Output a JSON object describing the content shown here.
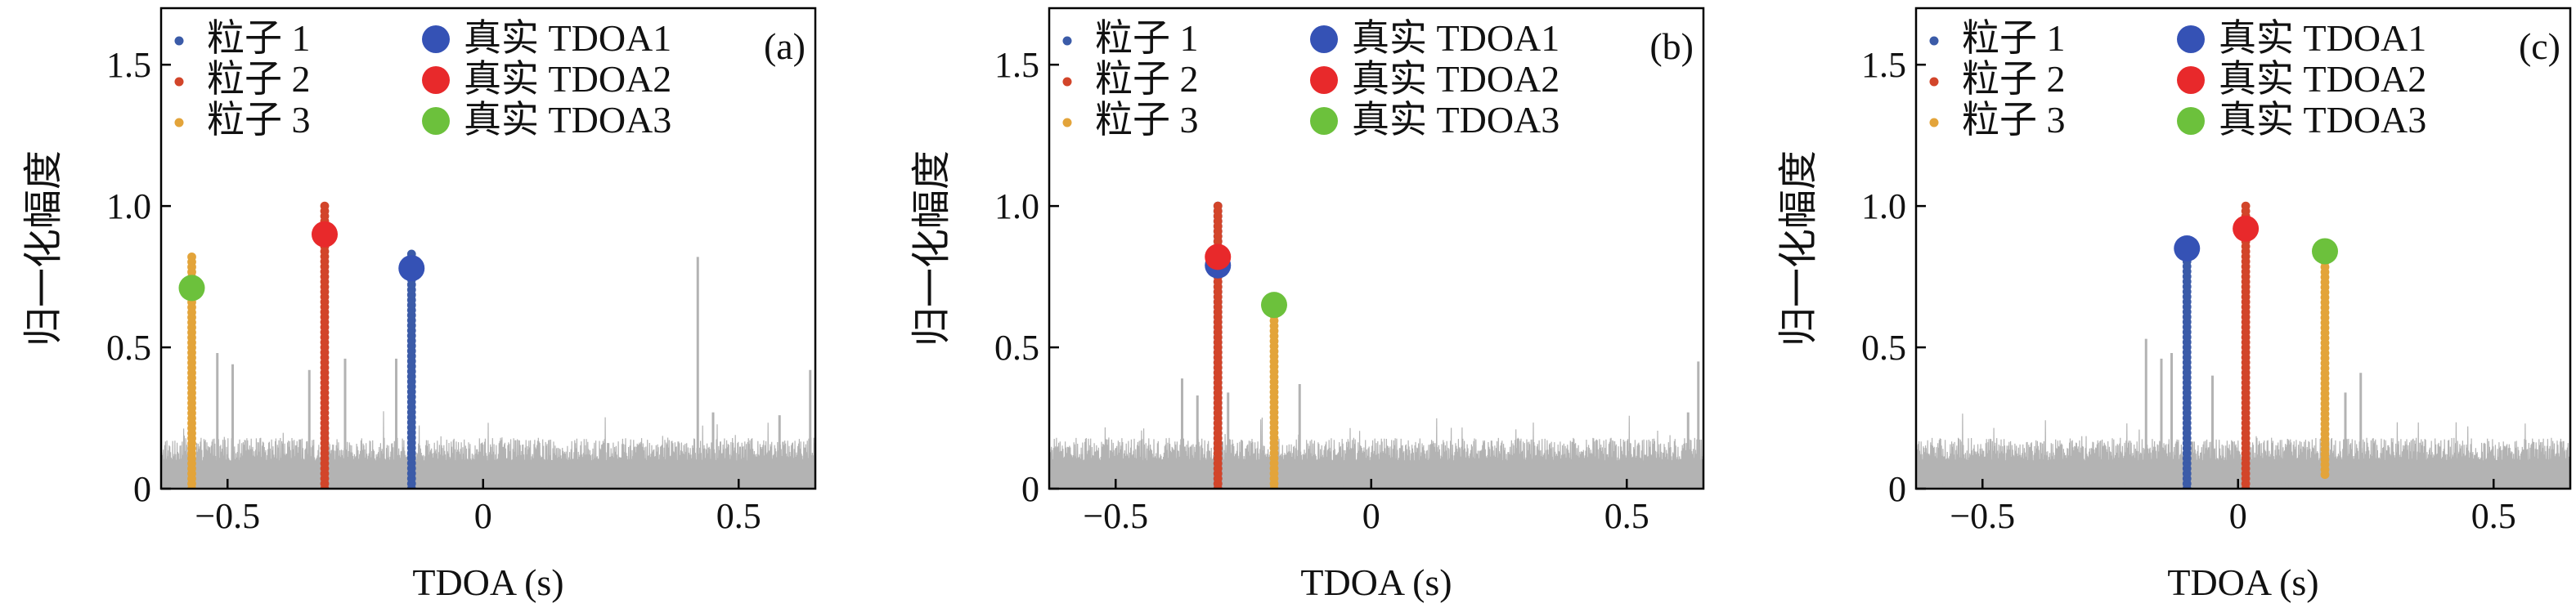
{
  "colors": {
    "particle1": "#3b5ba8",
    "particle2": "#d2452a",
    "particle3": "#e3a43a",
    "true1": "#3552b5",
    "true2": "#e8292b",
    "true3": "#6cc13c",
    "noise": "#b3b3b3",
    "axis": "#000000"
  },
  "chart_data": [
    {
      "type": "scatter",
      "panel_label": "(a)",
      "xlabel": "TDOA (s)",
      "ylabel": "归一化幅度",
      "xlim": [
        -0.63,
        0.65
      ],
      "ylim": [
        0,
        1.7
      ],
      "xticks": [
        -0.5,
        0,
        0.5
      ],
      "xtick_labels": [
        "−0.5",
        "0",
        "0.5"
      ],
      "yticks": [
        0,
        0.5,
        1.0,
        1.5
      ],
      "ytick_labels": [
        "0",
        "0.5",
        "1.0",
        "1.5"
      ],
      "legend": [
        "粒子 1",
        "粒子 2",
        "粒子 3",
        "真实 TDOA1",
        "真实 TDOA2",
        "真实 TDOA3"
      ],
      "particles": [
        {
          "name": "粒子 1",
          "x": -0.14,
          "ymin": 0.0,
          "ymax": 0.83
        },
        {
          "name": "粒子 2",
          "x": -0.31,
          "ymin": 0.0,
          "ymax": 1.0
        },
        {
          "name": "粒子 3",
          "x": -0.57,
          "ymin": 0.0,
          "ymax": 0.82
        }
      ],
      "true_tdoa": [
        {
          "name": "真实 TDOA1",
          "x": -0.14,
          "y": 0.78
        },
        {
          "name": "真实 TDOA2",
          "x": -0.31,
          "y": 0.9
        },
        {
          "name": "真实 TDOA3",
          "x": -0.57,
          "y": 0.71
        }
      ],
      "noise_spikes": [
        {
          "x": -0.57,
          "y": 0.54
        },
        {
          "x": -0.52,
          "y": 0.48
        },
        {
          "x": -0.49,
          "y": 0.44
        },
        {
          "x": -0.34,
          "y": 0.42
        },
        {
          "x": -0.27,
          "y": 0.46
        },
        {
          "x": -0.17,
          "y": 0.46
        },
        {
          "x": 0.42,
          "y": 0.82
        },
        {
          "x": 0.45,
          "y": 0.27
        },
        {
          "x": 0.58,
          "y": 0.26
        },
        {
          "x": 0.64,
          "y": 0.42
        }
      ]
    },
    {
      "type": "scatter",
      "panel_label": "(b)",
      "xlabel": "TDOA (s)",
      "ylabel": "归一化幅度",
      "xlim": [
        -0.63,
        0.65
      ],
      "ylim": [
        0,
        1.7
      ],
      "xticks": [
        -0.5,
        0,
        0.5
      ],
      "xtick_labels": [
        "−0.5",
        "0",
        "0.5"
      ],
      "yticks": [
        0,
        0.5,
        1.0,
        1.5
      ],
      "ytick_labels": [
        "0",
        "0.5",
        "1.0",
        "1.5"
      ],
      "legend": [
        "粒子 1",
        "粒子 2",
        "粒子 3",
        "真实 TDOA1",
        "真实 TDOA2",
        "真实 TDOA3"
      ],
      "particles": [
        {
          "name": "粒子 1",
          "x": -0.3,
          "ymin": 0.0,
          "ymax": 1.0
        },
        {
          "name": "粒子 2",
          "x": -0.3,
          "ymin": 0.0,
          "ymax": 1.0
        },
        {
          "name": "粒子 3",
          "x": -0.19,
          "ymin": 0.0,
          "ymax": 0.63
        }
      ],
      "true_tdoa": [
        {
          "name": "真实 TDOA1",
          "x": -0.3,
          "y": 0.79
        },
        {
          "name": "真实 TDOA2",
          "x": -0.3,
          "y": 0.82
        },
        {
          "name": "真实 TDOA3",
          "x": -0.19,
          "y": 0.65
        }
      ],
      "noise_spikes": [
        {
          "x": -0.37,
          "y": 0.39
        },
        {
          "x": -0.34,
          "y": 0.33
        },
        {
          "x": -0.28,
          "y": 0.34
        },
        {
          "x": -0.14,
          "y": 0.37
        },
        {
          "x": 0.62,
          "y": 0.27
        },
        {
          "x": 0.64,
          "y": 0.45
        }
      ]
    },
    {
      "type": "scatter",
      "panel_label": "(c)",
      "xlabel": "TDOA (s)",
      "ylabel": "归一化幅度",
      "xlim": [
        -0.63,
        0.65
      ],
      "ylim": [
        0,
        1.7
      ],
      "xticks": [
        -0.5,
        0,
        0.5
      ],
      "xtick_labels": [
        "−0.5",
        "0",
        "0.5"
      ],
      "yticks": [
        0,
        0.5,
        1.0,
        1.5
      ],
      "ytick_labels": [
        "0",
        "0.5",
        "1.0",
        "1.5"
      ],
      "legend": [
        "粒子 1",
        "粒子 2",
        "粒子 3",
        "真实 TDOA1",
        "真实 TDOA2",
        "真实 TDOA3"
      ],
      "particles": [
        {
          "name": "粒子 1",
          "x": -0.1,
          "ymin": 0.0,
          "ymax": 0.84
        },
        {
          "name": "粒子 2",
          "x": 0.015,
          "ymin": 0.0,
          "ymax": 1.0
        },
        {
          "name": "粒子 3",
          "x": 0.17,
          "ymin": 0.05,
          "ymax": 0.82
        }
      ],
      "true_tdoa": [
        {
          "name": "真实 TDOA1",
          "x": -0.1,
          "y": 0.85
        },
        {
          "name": "真实 TDOA2",
          "x": 0.015,
          "y": 0.92
        },
        {
          "name": "真实 TDOA3",
          "x": 0.17,
          "y": 0.84
        }
      ],
      "noise_spikes": [
        {
          "x": -0.18,
          "y": 0.53
        },
        {
          "x": -0.15,
          "y": 0.46
        },
        {
          "x": -0.13,
          "y": 0.48
        },
        {
          "x": -0.05,
          "y": 0.4
        },
        {
          "x": 0.21,
          "y": 0.34
        },
        {
          "x": 0.24,
          "y": 0.41
        }
      ]
    }
  ]
}
